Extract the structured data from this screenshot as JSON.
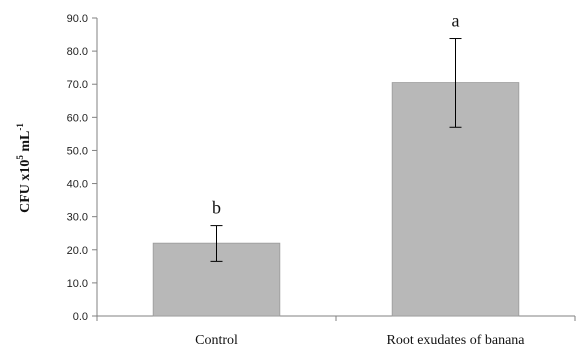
{
  "chart_data": {
    "type": "bar",
    "categories": [
      "Control",
      "Root exudates of banana"
    ],
    "values": [
      22.0,
      70.5
    ],
    "error_low": [
      16.5,
      57.0
    ],
    "error_high": [
      27.3,
      83.8
    ],
    "significance_labels": [
      "b",
      "a"
    ],
    "ylabel": {
      "base": "CFU x10",
      "exp1": "5",
      "mid": " mL",
      "exp2": "-1"
    },
    "ylim": [
      0,
      90
    ],
    "yticks": [
      "0.0",
      "10.0",
      "20.0",
      "30.0",
      "40.0",
      "50.0",
      "60.0",
      "70.0",
      "80.0",
      "90.0"
    ],
    "grid": false,
    "bar_color": "#b8b8b8",
    "bar_edge_color": "#9a9a9a"
  }
}
